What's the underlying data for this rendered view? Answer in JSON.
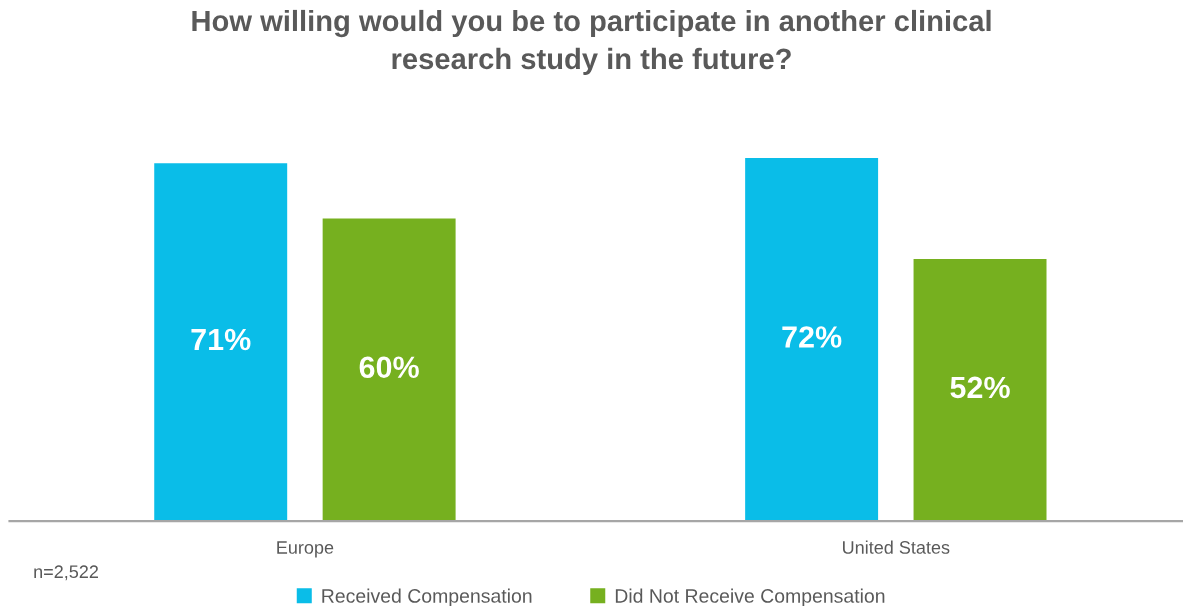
{
  "chart_data": {
    "type": "bar",
    "title": "How willing would you be to participate in another clinical\nresearch study in the future?",
    "categories": [
      "Europe",
      "United States"
    ],
    "series": [
      {
        "name": "Received Compensation",
        "color": "#0abde8",
        "values": [
          71,
          72
        ],
        "value_labels": [
          "71%",
          "72%"
        ]
      },
      {
        "name": "Did Not Receive Compensation",
        "color": "#76b01f",
        "values": [
          60,
          52
        ],
        "value_labels": [
          "60%",
          "52%"
        ]
      }
    ],
    "legend": "bottom",
    "grid": false,
    "tick_labels": "x",
    "annotations": [
      "n=2,522"
    ]
  }
}
